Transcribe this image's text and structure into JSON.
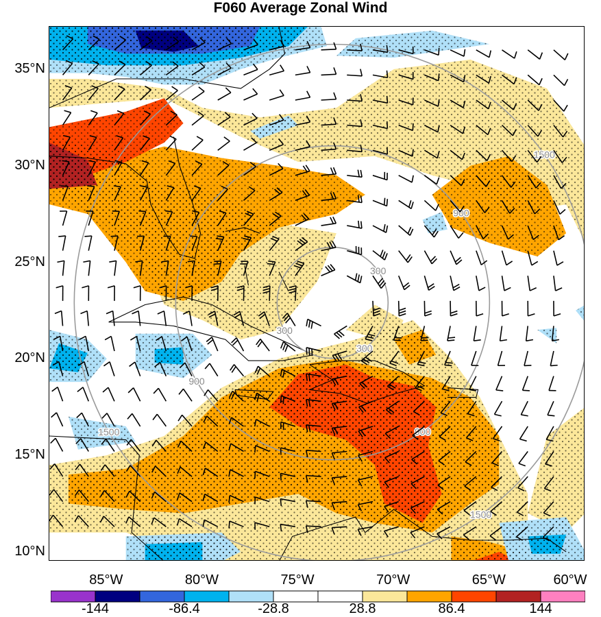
{
  "title": "F060 Average Zonal Wind",
  "lat_labels": [
    {
      "text": "35°N",
      "lat": 35
    },
    {
      "text": "30°N",
      "lat": 30
    },
    {
      "text": "25°N",
      "lat": 25
    },
    {
      "text": "20°N",
      "lat": 20
    },
    {
      "text": "15°N",
      "lat": 15
    },
    {
      "text": "10°N",
      "lat": 10
    }
  ],
  "lon_labels": [
    {
      "text": "85°W",
      "lon": -85
    },
    {
      "text": "80°W",
      "lon": -80
    },
    {
      "text": "75°W",
      "lon": -75
    },
    {
      "text": "70°W",
      "lon": -70
    },
    {
      "text": "65°W",
      "lon": -65
    },
    {
      "text": "60°W",
      "lon": -60
    }
  ],
  "map_extent": {
    "lon_min": -88,
    "lon_max": -60,
    "lat_min": 9.5,
    "lat_max": 37.2
  },
  "storm_center": {
    "lon": -73.2,
    "lat": 22.9
  },
  "range_rings": [
    {
      "label": "300",
      "radius_deg": 2.9
    },
    {
      "label": "900",
      "radius_deg": 8.2
    },
    {
      "label": "1500",
      "radius_deg": 13.5
    }
  ],
  "colorbar": {
    "colors": [
      "#9933cc",
      "#000080",
      "#3366dd",
      "#00b2ee",
      "#b0e0f8",
      "#ffffff",
      "#ffffff",
      "#fbe79a",
      "#ffa500",
      "#ff4500",
      "#b22222",
      "#ff80c0"
    ],
    "labels": [
      {
        "text": "-144",
        "index": 1
      },
      {
        "text": "-86.4",
        "index": 3
      },
      {
        "text": "-28.8",
        "index": 5
      },
      {
        "text": "28.8",
        "index": 7
      },
      {
        "text": "86.4",
        "index": 9
      },
      {
        "text": "144",
        "index": 11
      }
    ]
  },
  "legend_colors": {
    "strong_negative": "#000080",
    "negative": "#3366dd",
    "weak_negative": "#00b2ee",
    "light_negative": "#b0e0f8",
    "light_positive": "#fbe79a",
    "positive": "#ffa500",
    "strong_positive": "#ff4500",
    "very_strong": "#b22222"
  }
}
